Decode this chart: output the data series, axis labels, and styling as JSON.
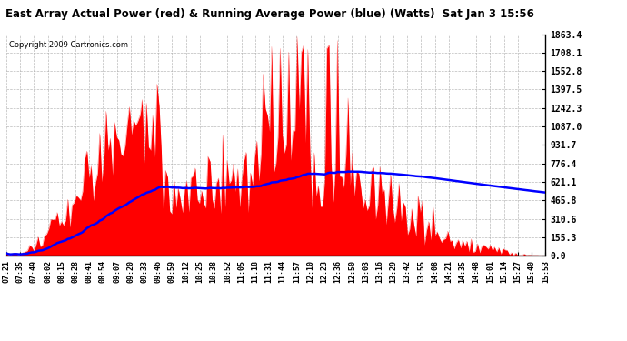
{
  "title": "East Array Actual Power (red) & Running Average Power (blue) (Watts)  Sat Jan 3 15:56",
  "copyright": "Copyright 2009 Cartronics.com",
  "yticks": [
    0.0,
    155.3,
    310.6,
    465.8,
    621.1,
    776.4,
    931.7,
    1087.0,
    1242.3,
    1397.5,
    1552.8,
    1708.1,
    1863.4
  ],
  "ymax": 1863.4,
  "xtick_labels": [
    "07:21",
    "07:35",
    "07:49",
    "08:02",
    "08:15",
    "08:28",
    "08:41",
    "08:54",
    "09:07",
    "09:20",
    "09:33",
    "09:46",
    "09:59",
    "10:12",
    "10:25",
    "10:38",
    "10:52",
    "11:05",
    "11:18",
    "11:31",
    "11:44",
    "11:57",
    "12:10",
    "12:23",
    "12:36",
    "12:50",
    "13:03",
    "13:16",
    "13:29",
    "13:42",
    "13:55",
    "14:08",
    "14:21",
    "14:35",
    "14:48",
    "15:01",
    "15:14",
    "15:27",
    "15:40",
    "15:53"
  ],
  "red_color": "#FF0000",
  "blue_color": "#0000FF",
  "bg_color": "#FFFFFF",
  "grid_color": "#AAAAAA"
}
